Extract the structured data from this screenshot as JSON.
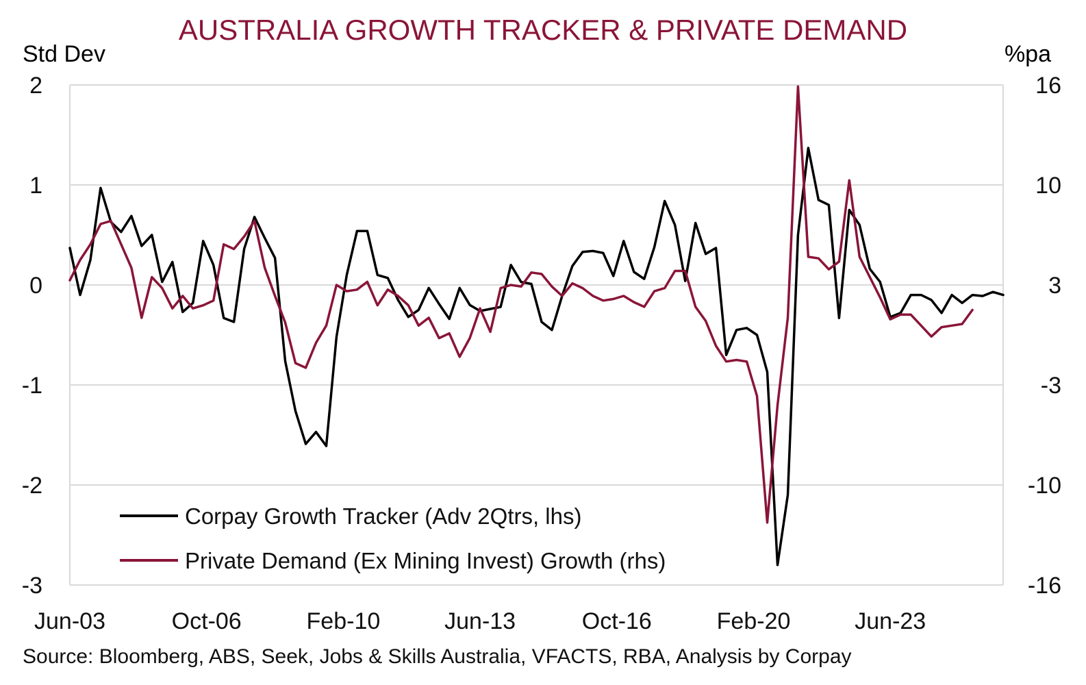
{
  "chart_data": {
    "type": "line",
    "title": "AUSTRALIA GROWTH TRACKER & PRIVATE DEMAND",
    "y_left_label": "Std Dev",
    "y_right_label": "%pa",
    "y_left_ticks": [
      "2",
      "1",
      "0",
      "-1",
      "-2",
      "-3"
    ],
    "y_right_ticks": [
      "16",
      "10",
      "3",
      "-3",
      "-10",
      "-16"
    ],
    "ylim_left": [
      -3,
      2
    ],
    "ylim_right": [
      -16,
      16
    ],
    "x_ticks": [
      "Jun-03",
      "Oct-06",
      "Feb-10",
      "Jun-13",
      "Oct-16",
      "Feb-20",
      "Jun-23"
    ],
    "grid": "horizontal",
    "legend_position": "bottom-left",
    "source": "Source: Bloomberg, ABS, Seek, Jobs & Skills Australia, VFACTS, RBA, Analysis by Corpay",
    "colors": {
      "tracker": "#000000",
      "demand": "#8a1538"
    },
    "series": [
      {
        "name": "Corpay Growth Tracker (Adv 2Qtrs, lhs)",
        "axis": "left",
        "x": [
          "2003-06",
          "2003-09",
          "2003-12",
          "2004-03",
          "2004-06",
          "2004-09",
          "2004-12",
          "2005-03",
          "2005-06",
          "2005-09",
          "2005-12",
          "2006-03",
          "2006-06",
          "2006-09",
          "2006-12",
          "2007-03",
          "2007-06",
          "2007-09",
          "2007-12",
          "2008-03",
          "2008-06",
          "2008-09",
          "2008-12",
          "2009-03",
          "2009-06",
          "2009-09",
          "2009-12",
          "2010-03",
          "2010-06",
          "2010-09",
          "2010-12",
          "2011-03",
          "2011-06",
          "2011-09",
          "2011-12",
          "2012-03",
          "2012-06",
          "2012-09",
          "2012-12",
          "2013-03",
          "2013-06",
          "2013-09",
          "2013-12",
          "2014-03",
          "2014-06",
          "2014-09",
          "2014-12",
          "2015-03",
          "2015-06",
          "2015-09",
          "2015-12",
          "2016-03",
          "2016-06",
          "2016-09",
          "2016-12",
          "2017-03",
          "2017-06",
          "2017-09",
          "2017-12",
          "2018-03",
          "2018-06",
          "2018-09",
          "2018-12",
          "2019-03",
          "2019-06",
          "2019-09",
          "2019-12",
          "2020-03",
          "2020-06",
          "2020-09",
          "2020-12",
          "2021-03",
          "2021-06",
          "2021-09",
          "2021-12",
          "2022-03",
          "2022-06",
          "2022-09",
          "2022-12",
          "2023-03",
          "2023-06",
          "2023-09",
          "2023-12",
          "2024-03",
          "2024-06",
          "2024-09",
          "2024-12",
          "2025-03",
          "2025-06",
          "2025-09",
          "2025-12",
          "2026-03"
        ],
        "values": [
          0.37,
          -0.1,
          0.25,
          0.97,
          0.63,
          0.53,
          0.69,
          0.39,
          0.5,
          0.03,
          0.23,
          -0.27,
          -0.18,
          0.44,
          0.2,
          -0.33,
          -0.37,
          0.36,
          0.68,
          0.47,
          0.27,
          -0.76,
          -1.26,
          -1.59,
          -1.47,
          -1.61,
          -0.52,
          0.1,
          0.54,
          0.54,
          0.1,
          0.07,
          -0.15,
          -0.32,
          -0.25,
          -0.03,
          -0.19,
          -0.34,
          -0.03,
          -0.2,
          -0.26,
          -0.24,
          -0.22,
          0.2,
          0.03,
          0.01,
          -0.37,
          -0.45,
          -0.11,
          0.19,
          0.33,
          0.34,
          0.32,
          0.09,
          0.44,
          0.13,
          0.06,
          0.38,
          0.84,
          0.6,
          0.04,
          0.62,
          0.31,
          0.37,
          -0.7,
          -0.45,
          -0.43,
          -0.5,
          -0.87,
          -2.8,
          -2.1,
          0.5,
          1.37,
          0.85,
          0.8,
          -0.33,
          0.75,
          0.6,
          0.16,
          0.03,
          -0.32,
          -0.28,
          -0.1,
          -0.1,
          -0.15,
          -0.28,
          -0.1,
          -0.18,
          -0.1,
          -0.11,
          -0.07,
          -0.1
        ]
      },
      {
        "name": "Private Demand (Ex Mining Invest) Growth (rhs)",
        "axis": "right",
        "x": [
          "2003-06",
          "2003-09",
          "2003-12",
          "2004-03",
          "2004-06",
          "2004-09",
          "2004-12",
          "2005-03",
          "2005-06",
          "2005-09",
          "2005-12",
          "2006-03",
          "2006-06",
          "2006-09",
          "2006-12",
          "2007-03",
          "2007-06",
          "2007-09",
          "2007-12",
          "2008-03",
          "2008-06",
          "2008-09",
          "2008-12",
          "2009-03",
          "2009-06",
          "2009-09",
          "2009-12",
          "2010-03",
          "2010-06",
          "2010-09",
          "2010-12",
          "2011-03",
          "2011-06",
          "2011-09",
          "2011-12",
          "2012-03",
          "2012-06",
          "2012-09",
          "2012-12",
          "2013-03",
          "2013-06",
          "2013-09",
          "2013-12",
          "2014-03",
          "2014-06",
          "2014-09",
          "2014-12",
          "2015-03",
          "2015-06",
          "2015-09",
          "2015-12",
          "2016-03",
          "2016-06",
          "2016-09",
          "2016-12",
          "2017-03",
          "2017-06",
          "2017-09",
          "2017-12",
          "2018-03",
          "2018-06",
          "2018-09",
          "2018-12",
          "2019-03",
          "2019-06",
          "2019-09",
          "2019-12",
          "2020-03",
          "2020-06",
          "2020-09",
          "2020-12",
          "2021-03",
          "2021-06",
          "2021-09",
          "2021-12",
          "2022-03",
          "2022-06",
          "2022-09",
          "2022-12",
          "2023-03",
          "2023-06",
          "2023-09",
          "2023-12",
          "2024-03",
          "2024-06",
          "2024-09",
          "2024-12",
          "2025-03",
          "2025-06"
        ],
        "values": [
          3.5,
          4.8,
          5.8,
          7.1,
          7.3,
          5.8,
          4.3,
          1.1,
          3.7,
          3.0,
          1.7,
          2.5,
          1.7,
          1.9,
          2.2,
          5.8,
          5.5,
          6.3,
          7.3,
          4.3,
          2.5,
          0.8,
          -1.8,
          -2.1,
          -0.5,
          0.6,
          3.2,
          2.8,
          2.9,
          3.4,
          1.9,
          2.9,
          2.5,
          1.9,
          0.6,
          1.1,
          -0.2,
          0.1,
          -1.4,
          -0.2,
          1.7,
          0.2,
          3.0,
          3.2,
          3.1,
          4.0,
          3.9,
          3.1,
          2.5,
          3.3,
          3.0,
          2.5,
          2.2,
          2.3,
          2.5,
          2.1,
          1.8,
          2.8,
          3.0,
          4.1,
          4.1,
          1.8,
          0.9,
          -0.7,
          -1.7,
          -1.6,
          -1.7,
          -3.9,
          -12.0,
          -4.5,
          1.1,
          15.9,
          5.0,
          4.9,
          4.2,
          4.7,
          9.9,
          5.0,
          3.7,
          2.4,
          1.0,
          1.3,
          1.3,
          0.6,
          -0.1,
          0.5,
          0.6,
          0.7,
          1.6
        ]
      }
    ]
  }
}
